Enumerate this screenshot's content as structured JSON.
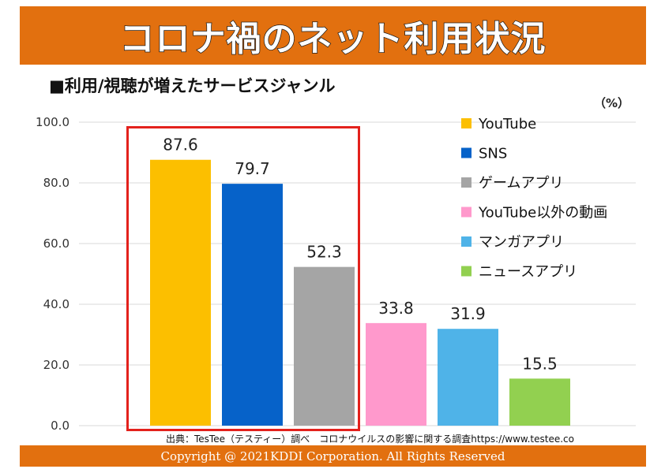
{
  "title": "コロナ禍のネット利用状況",
  "subtitle": "■利用/視聴が増えたサービスジャンル",
  "unit_label": "（%）",
  "source": "出典：TesTee（テスティー）調べ　コロナウイルスの影響に関する調査https://www.testee.co",
  "copyright": "Copyright @ 2021KDDI Corporation. All Rights Reserved",
  "colors": {
    "banner": "#e2700f",
    "highlight": "#e3211c"
  },
  "chart_data": {
    "type": "bar",
    "categories": [
      "YouTube",
      "SNS",
      "ゲームアプリ",
      "YouTube以外の動画",
      "マンガアプリ",
      "ニュースアプリ"
    ],
    "values": [
      87.6,
      79.7,
      52.3,
      33.8,
      31.9,
      15.5
    ],
    "value_labels": [
      "87.6",
      "79.7",
      "52.3",
      "33.8",
      "31.9",
      "15.5"
    ],
    "bar_colors": [
      "#fcbf00",
      "#0662c9",
      "#a5a5a5",
      "#ff99cc",
      "#4fb3e8",
      "#92d050"
    ],
    "ylim": [
      0,
      100
    ],
    "yticks": [
      "0.0",
      "20.0",
      "40.0",
      "60.0",
      "80.0",
      "100.0"
    ],
    "ytick_values": [
      0,
      20,
      40,
      60,
      80,
      100
    ],
    "grid": true,
    "legend": {
      "placement": "top-right",
      "entries": [
        "YouTube",
        "SNS",
        "ゲームアプリ",
        "YouTube以外の動画",
        "マンガアプリ",
        "ニュースアプリ"
      ]
    }
  }
}
